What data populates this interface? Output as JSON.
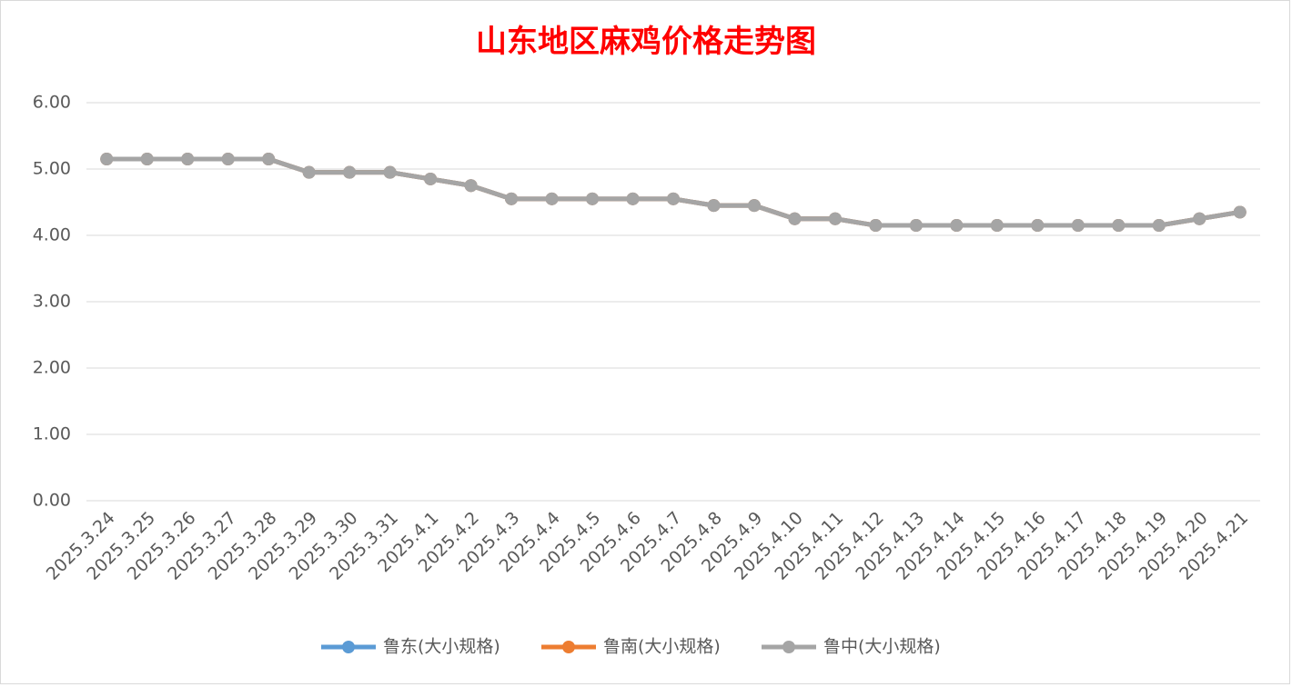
{
  "chart_data": {
    "type": "line",
    "title": "山东地区麻鸡价格走势图",
    "categories": [
      "2025.3.24",
      "2025.3.25",
      "2025.3.26",
      "2025.3.27",
      "2025.3.28",
      "2025.3.29",
      "2025.3.30",
      "2025.3.31",
      "2025.4.1",
      "2025.4.2",
      "2025.4.3",
      "2025.4.4",
      "2025.4.5",
      "2025.4.6",
      "2025.4.7",
      "2025.4.8",
      "2025.4.9",
      "2025.4.10",
      "2025.4.11",
      "2025.4.12",
      "2025.4.13",
      "2025.4.14",
      "2025.4.15",
      "2025.4.16",
      "2025.4.17",
      "2025.4.18",
      "2025.4.19",
      "2025.4.20",
      "2025.4.21"
    ],
    "series": [
      {
        "name": "鲁东(大小规格)",
        "color": "#5b9bd5",
        "values": [
          5.15,
          5.15,
          5.15,
          5.15,
          5.15,
          4.95,
          4.95,
          4.95,
          4.85,
          4.75,
          4.55,
          4.55,
          4.55,
          4.55,
          4.55,
          4.45,
          4.45,
          4.25,
          4.25,
          4.15,
          4.15,
          4.15,
          4.15,
          4.15,
          4.15,
          4.15,
          4.15,
          4.25,
          4.35
        ]
      },
      {
        "name": "鲁南(大小规格)",
        "color": "#ed7d31",
        "values": [
          5.15,
          5.15,
          5.15,
          5.15,
          5.15,
          4.95,
          4.95,
          4.95,
          4.85,
          4.75,
          4.55,
          4.55,
          4.55,
          4.55,
          4.55,
          4.45,
          4.45,
          4.25,
          4.25,
          4.15,
          4.15,
          4.15,
          4.15,
          4.15,
          4.15,
          4.15,
          4.15,
          4.25,
          4.35
        ]
      },
      {
        "name": "鲁中(大小规格)",
        "color": "#a5a5a5",
        "values": [
          5.15,
          5.15,
          5.15,
          5.15,
          5.15,
          4.95,
          4.95,
          4.95,
          4.85,
          4.75,
          4.55,
          4.55,
          4.55,
          4.55,
          4.55,
          4.45,
          4.45,
          4.25,
          4.25,
          4.15,
          4.15,
          4.15,
          4.15,
          4.15,
          4.15,
          4.15,
          4.15,
          4.25,
          4.35
        ]
      }
    ],
    "ylim": [
      0,
      6
    ],
    "yticks": [
      {
        "value": 0,
        "label": "0.00"
      },
      {
        "value": 1,
        "label": "1.00"
      },
      {
        "value": 2,
        "label": "2.00"
      },
      {
        "value": 3,
        "label": "3.00"
      },
      {
        "value": 4,
        "label": "4.00"
      },
      {
        "value": 5,
        "label": "5.00"
      },
      {
        "value": 6,
        "label": "6.00"
      }
    ],
    "grid": true,
    "legend": "bottom"
  }
}
